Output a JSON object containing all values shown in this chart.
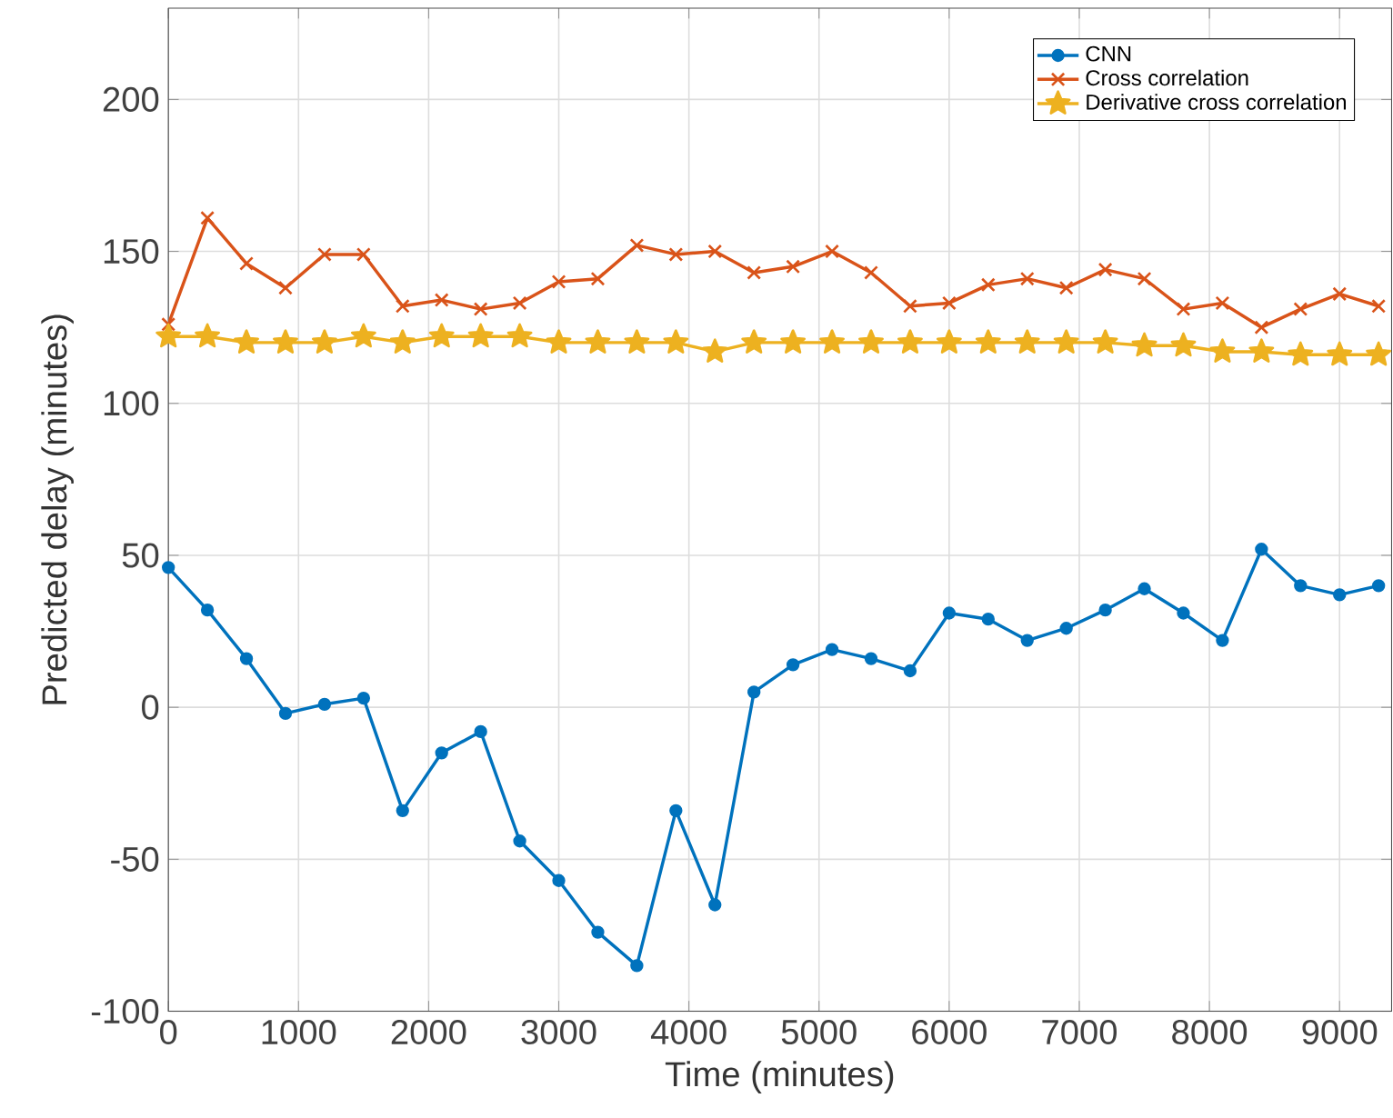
{
  "chart_data": {
    "type": "line",
    "xlabel": "Time (minutes)",
    "ylabel": "Predicted delay (minutes)",
    "x": [
      0,
      300,
      600,
      900,
      1200,
      1500,
      1800,
      2100,
      2400,
      2700,
      3000,
      3300,
      3600,
      3900,
      4200,
      4500,
      4800,
      5100,
      5400,
      5700,
      6000,
      6300,
      6600,
      6900,
      7200,
      7500,
      7800,
      8100,
      8400,
      8700,
      9000,
      9300
    ],
    "series": [
      {
        "name": "CNN",
        "color": "#0072bd",
        "marker": "circle",
        "values": [
          46,
          32,
          16,
          -2,
          1,
          3,
          -34,
          -15,
          -8,
          -44,
          -57,
          -74,
          -85,
          -34,
          -65,
          5,
          14,
          19,
          16,
          12,
          31,
          29,
          22,
          26,
          32,
          39,
          31,
          22,
          52,
          40,
          37,
          40
        ]
      },
      {
        "name": "Cross correlation",
        "color": "#d95319",
        "marker": "cross",
        "values": [
          126,
          161,
          146,
          138,
          149,
          149,
          132,
          134,
          131,
          133,
          140,
          141,
          152,
          149,
          150,
          143,
          145,
          150,
          143,
          132,
          133,
          139,
          141,
          138,
          144,
          141,
          131,
          133,
          125,
          131,
          136,
          132
        ]
      },
      {
        "name": "Derivative cross correlation",
        "color": "#edb120",
        "marker": "star",
        "values": [
          122,
          122,
          120,
          120,
          120,
          122,
          120,
          122,
          122,
          122,
          120,
          120,
          120,
          120,
          117,
          120,
          120,
          120,
          120,
          120,
          120,
          120,
          120,
          120,
          120,
          119,
          119,
          117,
          117,
          116,
          116,
          116
        ]
      }
    ],
    "xlim": [
      0,
      9400
    ],
    "ylim": [
      -100,
      230
    ],
    "xticks": [
      0,
      1000,
      2000,
      3000,
      4000,
      5000,
      6000,
      7000,
      8000,
      9000
    ],
    "yticks": [
      -100,
      -50,
      0,
      50,
      100,
      150,
      200
    ],
    "grid": true,
    "legend": "top right",
    "line_style": "solid"
  }
}
